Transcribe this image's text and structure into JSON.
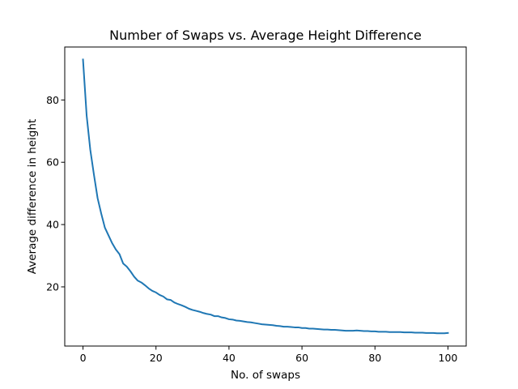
{
  "chart_data": {
    "type": "line",
    "title": "Number of Swaps vs. Average Height Difference",
    "xlabel": "No. of swaps",
    "ylabel": "Average difference in height",
    "xlim": [
      -5,
      105
    ],
    "ylim": [
      1,
      97
    ],
    "xticks": [
      0,
      20,
      40,
      60,
      80,
      100
    ],
    "yticks": [
      20,
      40,
      60,
      80
    ],
    "grid": false,
    "legend": "none",
    "series": [
      {
        "color": "#1f77b4",
        "x": [
          0,
          1,
          2,
          3,
          4,
          5,
          6,
          7,
          8,
          9,
          10,
          11,
          12,
          13,
          14,
          15,
          16,
          17,
          18,
          19,
          20,
          21,
          22,
          23,
          24,
          25,
          26,
          27,
          28,
          29,
          30,
          31,
          32,
          33,
          34,
          35,
          36,
          37,
          38,
          39,
          40,
          41,
          42,
          43,
          44,
          45,
          46,
          47,
          48,
          49,
          50,
          51,
          52,
          53,
          54,
          55,
          56,
          57,
          58,
          59,
          60,
          61,
          62,
          63,
          64,
          65,
          66,
          67,
          68,
          69,
          70,
          71,
          72,
          73,
          74,
          75,
          76,
          77,
          78,
          79,
          80,
          81,
          82,
          83,
          84,
          85,
          86,
          87,
          88,
          89,
          90,
          91,
          92,
          93,
          94,
          95,
          96,
          97,
          98,
          99,
          100
        ],
        "y": [
          93.0,
          75.0,
          64.0,
          56.0,
          48.5,
          43.5,
          39.0,
          36.5,
          34.0,
          32.0,
          30.5,
          27.5,
          26.5,
          25.0,
          23.3,
          22.0,
          21.4,
          20.5,
          19.5,
          18.7,
          18.2,
          17.4,
          16.9,
          16.0,
          15.8,
          15.0,
          14.5,
          14.1,
          13.6,
          13.0,
          12.6,
          12.3,
          12.0,
          11.6,
          11.3,
          11.1,
          10.6,
          10.6,
          10.2,
          10.0,
          9.6,
          9.5,
          9.2,
          9.1,
          8.9,
          8.7,
          8.6,
          8.4,
          8.2,
          8.0,
          7.9,
          7.8,
          7.7,
          7.5,
          7.4,
          7.2,
          7.2,
          7.1,
          7.0,
          7.0,
          6.8,
          6.8,
          6.6,
          6.6,
          6.5,
          6.4,
          6.3,
          6.3,
          6.2,
          6.2,
          6.1,
          6.0,
          5.9,
          5.9,
          5.9,
          6.0,
          5.9,
          5.8,
          5.8,
          5.7,
          5.7,
          5.6,
          5.6,
          5.6,
          5.5,
          5.5,
          5.5,
          5.5,
          5.4,
          5.4,
          5.4,
          5.3,
          5.3,
          5.3,
          5.2,
          5.2,
          5.2,
          5.1,
          5.1,
          5.1,
          5.2
        ]
      }
    ]
  }
}
